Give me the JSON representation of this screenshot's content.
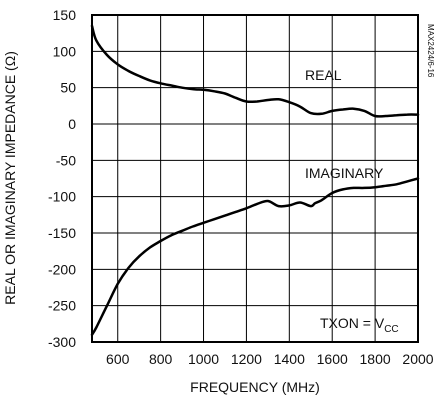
{
  "chart_data": {
    "type": "line",
    "xlabel": "FREQUENCY (MHz)",
    "ylabel": "REAL OR IMAGINARY IMPEDANCE (Ω)",
    "xlim": [
      480,
      2000
    ],
    "ylim": [
      -300,
      150
    ],
    "x_ticks": [
      600,
      800,
      1000,
      1200,
      1400,
      1600,
      1800,
      2000
    ],
    "y_ticks": [
      150,
      100,
      50,
      0,
      -50,
      -100,
      -150,
      -200,
      -250,
      -300
    ],
    "grid": true,
    "annotations": {
      "condition_main": "TXON = V",
      "condition_sub": "CC",
      "figure_code": "MAX2424/6-16"
    },
    "series": [
      {
        "name": "REAL",
        "x": [
          480,
          500,
          550,
          600,
          650,
          700,
          750,
          800,
          850,
          900,
          950,
          1000,
          1050,
          1100,
          1150,
          1200,
          1250,
          1300,
          1350,
          1400,
          1450,
          1500,
          1550,
          1600,
          1650,
          1700,
          1750,
          1800,
          1850,
          1900,
          1950,
          2000
        ],
        "values": [
          135,
          115,
          95,
          82,
          73,
          66,
          60,
          56,
          53,
          50,
          48,
          47,
          45,
          42,
          36,
          31,
          31,
          33,
          34,
          30,
          24,
          15,
          14,
          18,
          20,
          21,
          18,
          11,
          11,
          12,
          13,
          13
        ]
      },
      {
        "name": "IMAGINARY",
        "x": [
          480,
          500,
          550,
          600,
          650,
          700,
          750,
          800,
          850,
          900,
          950,
          1000,
          1050,
          1100,
          1150,
          1200,
          1250,
          1300,
          1350,
          1400,
          1450,
          1500,
          1520,
          1550,
          1600,
          1650,
          1700,
          1750,
          1800,
          1850,
          1900,
          1950,
          2000
        ],
        "values": [
          -290,
          -280,
          -250,
          -220,
          -198,
          -182,
          -170,
          -161,
          -153,
          -147,
          -141,
          -136,
          -131,
          -126,
          -121,
          -116,
          -110,
          -106,
          -113,
          -112,
          -108,
          -113,
          -109,
          -105,
          -95,
          -90,
          -88,
          -88,
          -87,
          -85,
          -83,
          -79,
          -75
        ]
      }
    ]
  }
}
